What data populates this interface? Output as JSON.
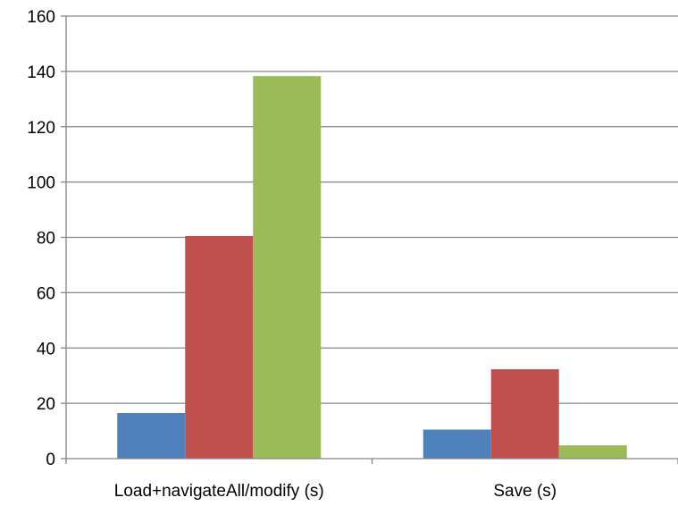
{
  "chart_data": {
    "type": "bar",
    "categories": [
      "Load+navigateAll/modify (s)",
      "Save (s)"
    ],
    "series": [
      {
        "color": "#4F81BD",
        "values": [
          16.5,
          10.5
        ]
      },
      {
        "color": "#C0504D",
        "values": [
          80.5,
          32.3
        ]
      },
      {
        "color": "#9BBB59",
        "values": [
          138.3,
          4.8
        ]
      }
    ],
    "ylim": [
      0,
      160
    ],
    "yticks": [
      0,
      20,
      40,
      60,
      80,
      100,
      120,
      140,
      160
    ],
    "grid": true,
    "gridline_color": "#868686",
    "axis_color": "#868686",
    "title": "",
    "xlabel": "",
    "ylabel": ""
  }
}
